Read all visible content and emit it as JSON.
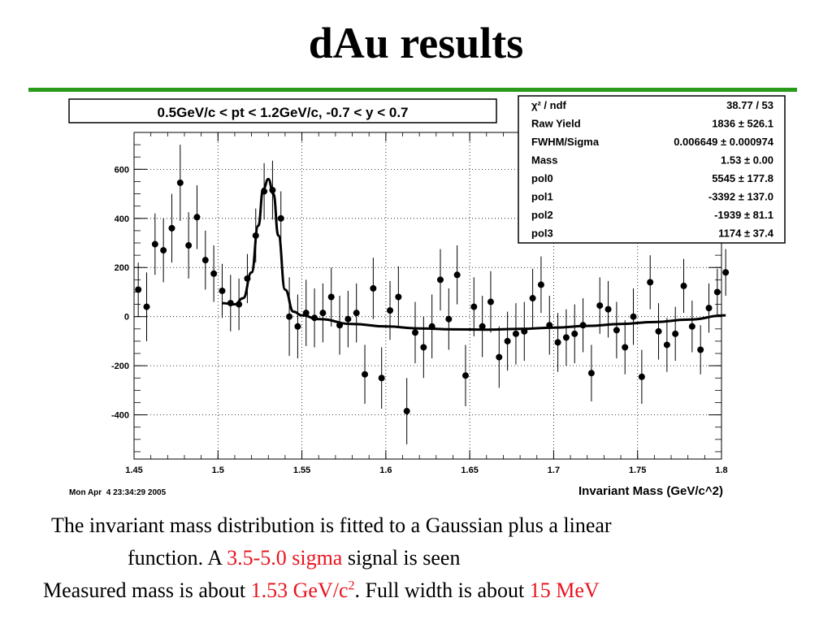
{
  "slide": {
    "title": "dAu results",
    "rule_color": "#2a9a1a"
  },
  "plot_header": "0.5GeV/c < pt < 1.2GeV/c, -0.7 < y < 0.7",
  "timestamp": "Mon Apr  4 23:34:29 2005",
  "stats_box": [
    {
      "name": "χ² / ndf",
      "value": "38.77 / 53"
    },
    {
      "name": "Raw Yield",
      "value": "1836 ± 526.1"
    },
    {
      "name": "FWHM/Sigma",
      "value": "0.006649 ± 0.000974"
    },
    {
      "name": "Mass",
      "value": "1.53 ± 0.00"
    },
    {
      "name": "pol0",
      "value": "5545 ± 177.8"
    },
    {
      "name": "pol1",
      "value": "-3392 ± 137.0"
    },
    {
      "name": "pol2",
      "value": "-1939 ± 81.1"
    },
    {
      "name": "pol3",
      "value": "1174 ± 37.4"
    }
  ],
  "captions": {
    "line1": "The invariant mass distribution is fitted to a Gaussian plus a linear",
    "line2_a": "function. A ",
    "line2_red": "3.5-5.0 sigma",
    "line2_b": " signal is seen",
    "line3_a": "Measured mass is about ",
    "line3_red": "1.53 GeV/c",
    "line3_sup": "2",
    "line3_b": ". Full width is about ",
    "line3_red2": "15 MeV",
    "highlight_color": "#e8141e"
  },
  "chart_data": {
    "type": "scatter",
    "title": "0.5GeV/c < pt < 1.2GeV/c, -0.7 < y < 0.7",
    "xlabel": "Invariant Mass (GeV/c^2)",
    "ylabel": "",
    "xlim": [
      1.45,
      1.8
    ],
    "ylim": [
      -580,
      750
    ],
    "x_ticks": [
      1.45,
      1.5,
      1.55,
      1.6,
      1.65,
      1.7,
      1.75,
      1.8
    ],
    "x_tick_labels": [
      "1.45",
      "1.5",
      "1.55",
      "1.6",
      "1.65",
      "1.7",
      "1.75",
      "1.8"
    ],
    "y_ticks": [
      -400,
      -200,
      0,
      200,
      400,
      600
    ],
    "y_tick_labels": [
      "-400",
      "-200",
      "0",
      "200",
      "400",
      "600"
    ],
    "grid": true,
    "points": [
      {
        "x": 1.4525,
        "y": 110,
        "err": 110
      },
      {
        "x": 1.4575,
        "y": 40,
        "err": 140
      },
      {
        "x": 1.4625,
        "y": 295,
        "err": 125
      },
      {
        "x": 1.4675,
        "y": 270,
        "err": 130
      },
      {
        "x": 1.4725,
        "y": 360,
        "err": 140
      },
      {
        "x": 1.4775,
        "y": 545,
        "err": 155
      },
      {
        "x": 1.4825,
        "y": 290,
        "err": 135
      },
      {
        "x": 1.4875,
        "y": 405,
        "err": 130
      },
      {
        "x": 1.4925,
        "y": 230,
        "err": 120
      },
      {
        "x": 1.4975,
        "y": 175,
        "err": 115
      },
      {
        "x": 1.5025,
        "y": 105,
        "err": 110
      },
      {
        "x": 1.5075,
        "y": 55,
        "err": 115
      },
      {
        "x": 1.5125,
        "y": 50,
        "err": 105
      },
      {
        "x": 1.5175,
        "y": 155,
        "err": 100
      },
      {
        "x": 1.5225,
        "y": 330,
        "err": 110
      },
      {
        "x": 1.5275,
        "y": 510,
        "err": 115
      },
      {
        "x": 1.5325,
        "y": 515,
        "err": 120
      },
      {
        "x": 1.5375,
        "y": 400,
        "err": 110
      },
      {
        "x": 1.5425,
        "y": 0,
        "err": 160
      },
      {
        "x": 1.5475,
        "y": -40,
        "err": 130
      },
      {
        "x": 1.5525,
        "y": 15,
        "err": 135
      },
      {
        "x": 1.5575,
        "y": -5,
        "err": 120
      },
      {
        "x": 1.5625,
        "y": 15,
        "err": 120
      },
      {
        "x": 1.5675,
        "y": 80,
        "err": 120
      },
      {
        "x": 1.5725,
        "y": -35,
        "err": 120
      },
      {
        "x": 1.5775,
        "y": -10,
        "err": 115
      },
      {
        "x": 1.5825,
        "y": 15,
        "err": 120
      },
      {
        "x": 1.5875,
        "y": -235,
        "err": 120
      },
      {
        "x": 1.5925,
        "y": 115,
        "err": 125
      },
      {
        "x": 1.5975,
        "y": -250,
        "err": 125
      },
      {
        "x": 1.6025,
        "y": 25,
        "err": 120
      },
      {
        "x": 1.6075,
        "y": 80,
        "err": 125
      },
      {
        "x": 1.6125,
        "y": -385,
        "err": 135
      },
      {
        "x": 1.6175,
        "y": -65,
        "err": 125
      },
      {
        "x": 1.6225,
        "y": -125,
        "err": 125
      },
      {
        "x": 1.6275,
        "y": -40,
        "err": 130
      },
      {
        "x": 1.6325,
        "y": 150,
        "err": 125
      },
      {
        "x": 1.6375,
        "y": -10,
        "err": 125
      },
      {
        "x": 1.6425,
        "y": 170,
        "err": 120
      },
      {
        "x": 1.6475,
        "y": -240,
        "err": 125
      },
      {
        "x": 1.6525,
        "y": 40,
        "err": 120
      },
      {
        "x": 1.6575,
        "y": -40,
        "err": 125
      },
      {
        "x": 1.6625,
        "y": 60,
        "err": 125
      },
      {
        "x": 1.6675,
        "y": -165,
        "err": 125
      },
      {
        "x": 1.6725,
        "y": -100,
        "err": 120
      },
      {
        "x": 1.6775,
        "y": -70,
        "err": 125
      },
      {
        "x": 1.6825,
        "y": -60,
        "err": 120
      },
      {
        "x": 1.6875,
        "y": 75,
        "err": 120
      },
      {
        "x": 1.6925,
        "y": 130,
        "err": 115
      },
      {
        "x": 1.6975,
        "y": -35,
        "err": 120
      },
      {
        "x": 1.7025,
        "y": -105,
        "err": 120
      },
      {
        "x": 1.7075,
        "y": -85,
        "err": 115
      },
      {
        "x": 1.7125,
        "y": -70,
        "err": 120
      },
      {
        "x": 1.7175,
        "y": -35,
        "err": 110
      },
      {
        "x": 1.7225,
        "y": -230,
        "err": 115
      },
      {
        "x": 1.7275,
        "y": 45,
        "err": 115
      },
      {
        "x": 1.7325,
        "y": 30,
        "err": 115
      },
      {
        "x": 1.7375,
        "y": -55,
        "err": 115
      },
      {
        "x": 1.7425,
        "y": -125,
        "err": 110
      },
      {
        "x": 1.7475,
        "y": 0,
        "err": 115
      },
      {
        "x": 1.7525,
        "y": -245,
        "err": 110
      },
      {
        "x": 1.7575,
        "y": 140,
        "err": 110
      },
      {
        "x": 1.7625,
        "y": -60,
        "err": 115
      },
      {
        "x": 1.7675,
        "y": -115,
        "err": 110
      },
      {
        "x": 1.7725,
        "y": -70,
        "err": 110
      },
      {
        "x": 1.7775,
        "y": 125,
        "err": 110
      },
      {
        "x": 1.7825,
        "y": -40,
        "err": 105
      },
      {
        "x": 1.7875,
        "y": -135,
        "err": 100
      },
      {
        "x": 1.7925,
        "y": 35,
        "err": 100
      },
      {
        "x": 1.7975,
        "y": 100,
        "err": 95
      },
      {
        "x": 1.8025,
        "y": 180,
        "err": 95
      }
    ],
    "fit_curve": {
      "x": [
        1.5025,
        1.51,
        1.515,
        1.52,
        1.524,
        1.527,
        1.53,
        1.533,
        1.536,
        1.54,
        1.545,
        1.55,
        1.56,
        1.58,
        1.6,
        1.62,
        1.64,
        1.66,
        1.68,
        1.7,
        1.72,
        1.74,
        1.76,
        1.78,
        1.8025
      ],
      "y": [
        55,
        50,
        75,
        180,
        370,
        520,
        560,
        500,
        330,
        110,
        20,
        5,
        -10,
        -30,
        -40,
        -48,
        -52,
        -53,
        -50,
        -45,
        -38,
        -30,
        -22,
        -12,
        5
      ]
    }
  }
}
